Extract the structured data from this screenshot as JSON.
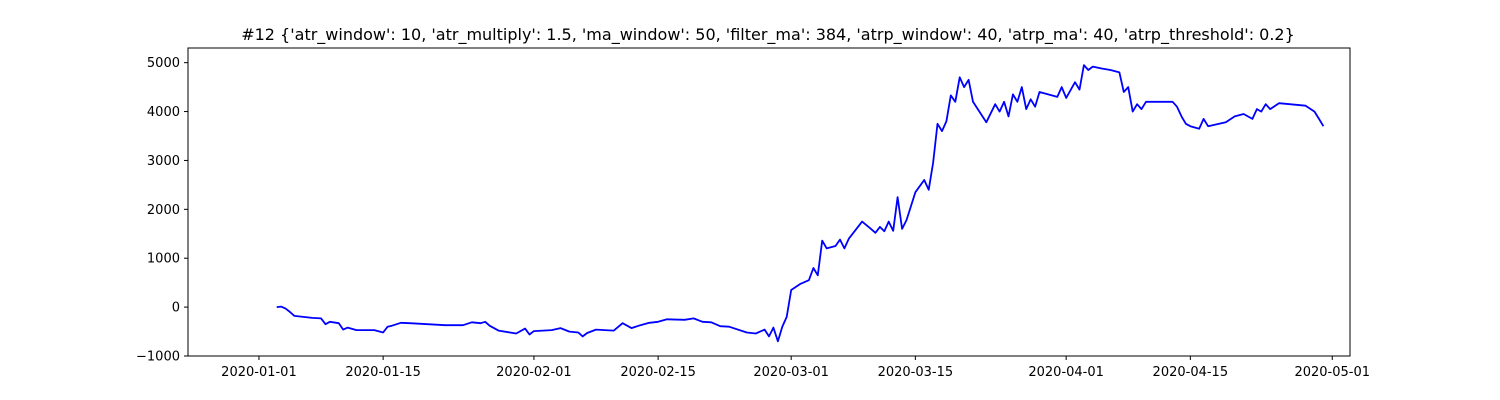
{
  "chart_data": {
    "type": "line",
    "title": "#12 {'atr_window': 10, 'atr_multiply': 1.5, 'ma_window': 50, 'filter_ma': 384, 'atrp_window': 40, 'atrp_ma': 40, 'atrp_threshold': 0.2}",
    "xlabel": "",
    "ylabel": "",
    "xlim": [
      "2019-12-24",
      "2020-05-03"
    ],
    "ylim": [
      -1000,
      5300
    ],
    "grid": false,
    "x_ticks": [
      {
        "value": "2020-01-01",
        "label": "2020-01-01"
      },
      {
        "value": "2020-01-15",
        "label": "2020-01-15"
      },
      {
        "value": "2020-02-01",
        "label": "2020-02-01"
      },
      {
        "value": "2020-02-15",
        "label": "2020-02-15"
      },
      {
        "value": "2020-03-01",
        "label": "2020-03-01"
      },
      {
        "value": "2020-03-15",
        "label": "2020-03-15"
      },
      {
        "value": "2020-04-01",
        "label": "2020-04-01"
      },
      {
        "value": "2020-04-15",
        "label": "2020-04-15"
      },
      {
        "value": "2020-05-01",
        "label": "2020-05-01"
      }
    ],
    "y_ticks": [
      {
        "value": -1000,
        "label": "−1000"
      },
      {
        "value": 0,
        "label": "0"
      },
      {
        "value": 1000,
        "label": "1000"
      },
      {
        "value": 2000,
        "label": "2000"
      },
      {
        "value": 3000,
        "label": "3000"
      },
      {
        "value": 4000,
        "label": "4000"
      },
      {
        "value": 5000,
        "label": "5000"
      }
    ],
    "series": [
      {
        "color": "#0000ff",
        "points": [
          [
            "2020-01-03",
            0
          ],
          [
            "2020-01-03 12:00",
            10
          ],
          [
            "2020-01-04",
            -30
          ],
          [
            "2020-01-04 12:00",
            -100
          ],
          [
            "2020-01-05",
            -180
          ],
          [
            "2020-01-07",
            -220
          ],
          [
            "2020-01-08",
            -230
          ],
          [
            "2020-01-08 12:00",
            -350
          ],
          [
            "2020-01-09",
            -300
          ],
          [
            "2020-01-10",
            -330
          ],
          [
            "2020-01-10 12:00",
            -460
          ],
          [
            "2020-01-11",
            -420
          ],
          [
            "2020-01-12",
            -470
          ],
          [
            "2020-01-14",
            -470
          ],
          [
            "2020-01-15",
            -520
          ],
          [
            "2020-01-15 12:00",
            -400
          ],
          [
            "2020-01-16",
            -380
          ],
          [
            "2020-01-17",
            -320
          ],
          [
            "2020-01-18",
            -330
          ],
          [
            "2020-01-20",
            -350
          ],
          [
            "2020-01-22",
            -370
          ],
          [
            "2020-01-24",
            -370
          ],
          [
            "2020-01-25",
            -310
          ],
          [
            "2020-01-26",
            -330
          ],
          [
            "2020-01-26 12:00",
            -300
          ],
          [
            "2020-01-27",
            -380
          ],
          [
            "2020-01-28",
            -480
          ],
          [
            "2020-01-30",
            -540
          ],
          [
            "2020-01-31",
            -440
          ],
          [
            "2020-01-31 12:00",
            -560
          ],
          [
            "2020-02-01",
            -490
          ],
          [
            "2020-02-03",
            -470
          ],
          [
            "2020-02-04",
            -430
          ],
          [
            "2020-02-05",
            -500
          ],
          [
            "2020-02-06",
            -520
          ],
          [
            "2020-02-06 12:00",
            -600
          ],
          [
            "2020-02-07",
            -530
          ],
          [
            "2020-02-08",
            -460
          ],
          [
            "2020-02-10",
            -480
          ],
          [
            "2020-02-11",
            -330
          ],
          [
            "2020-02-12",
            -430
          ],
          [
            "2020-02-13",
            -370
          ],
          [
            "2020-02-14",
            -320
          ],
          [
            "2020-02-15",
            -300
          ],
          [
            "2020-02-16",
            -250
          ],
          [
            "2020-02-18",
            -260
          ],
          [
            "2020-02-19",
            -230
          ],
          [
            "2020-02-20",
            -300
          ],
          [
            "2020-02-21",
            -310
          ],
          [
            "2020-02-22",
            -390
          ],
          [
            "2020-02-23",
            -400
          ],
          [
            "2020-02-25",
            -520
          ],
          [
            "2020-02-26",
            -540
          ],
          [
            "2020-02-27",
            -460
          ],
          [
            "2020-02-27 12:00",
            -600
          ],
          [
            "2020-02-28",
            -420
          ],
          [
            "2020-02-28 12:00",
            -700
          ],
          [
            "2020-02-29",
            -400
          ],
          [
            "2020-02-29 12:00",
            -200
          ],
          [
            "2020-03-01",
            350
          ],
          [
            "2020-03-02",
            470
          ],
          [
            "2020-03-03",
            550
          ],
          [
            "2020-03-03 12:00",
            800
          ],
          [
            "2020-03-04",
            650
          ],
          [
            "2020-03-04 12:00",
            1360
          ],
          [
            "2020-03-05",
            1200
          ],
          [
            "2020-03-06",
            1250
          ],
          [
            "2020-03-06 12:00",
            1380
          ],
          [
            "2020-03-07",
            1200
          ],
          [
            "2020-03-07 12:00",
            1400
          ],
          [
            "2020-03-09",
            1750
          ],
          [
            "2020-03-10",
            1600
          ],
          [
            "2020-03-10 12:00",
            1520
          ],
          [
            "2020-03-11",
            1640
          ],
          [
            "2020-03-11 12:00",
            1550
          ],
          [
            "2020-03-12",
            1750
          ],
          [
            "2020-03-12 12:00",
            1560
          ],
          [
            "2020-03-13",
            2250
          ],
          [
            "2020-03-13 12:00",
            1600
          ],
          [
            "2020-03-14",
            1780
          ],
          [
            "2020-03-15",
            2350
          ],
          [
            "2020-03-16",
            2600
          ],
          [
            "2020-03-16 12:00",
            2400
          ],
          [
            "2020-03-17",
            2950
          ],
          [
            "2020-03-17 12:00",
            3750
          ],
          [
            "2020-03-18",
            3600
          ],
          [
            "2020-03-18 12:00",
            3800
          ],
          [
            "2020-03-19",
            4330
          ],
          [
            "2020-03-19 12:00",
            4200
          ],
          [
            "2020-03-20",
            4700
          ],
          [
            "2020-03-20 12:00",
            4500
          ],
          [
            "2020-03-21",
            4650
          ],
          [
            "2020-03-21 12:00",
            4200
          ],
          [
            "2020-03-23",
            3780
          ],
          [
            "2020-03-24",
            4150
          ],
          [
            "2020-03-24 12:00",
            4000
          ],
          [
            "2020-03-25",
            4200
          ],
          [
            "2020-03-25 12:00",
            3900
          ],
          [
            "2020-03-26",
            4350
          ],
          [
            "2020-03-26 12:00",
            4200
          ],
          [
            "2020-03-27",
            4500
          ],
          [
            "2020-03-27 12:00",
            4050
          ],
          [
            "2020-03-28",
            4250
          ],
          [
            "2020-03-28 12:00",
            4100
          ],
          [
            "2020-03-29",
            4400
          ],
          [
            "2020-03-31",
            4300
          ],
          [
            "2020-03-31 12:00",
            4500
          ],
          [
            "2020-04-01",
            4280
          ],
          [
            "2020-04-02",
            4600
          ],
          [
            "2020-04-02 12:00",
            4450
          ],
          [
            "2020-04-03",
            4950
          ],
          [
            "2020-04-03 12:00",
            4850
          ],
          [
            "2020-04-04",
            4920
          ],
          [
            "2020-04-05",
            4880
          ],
          [
            "2020-04-06",
            4850
          ],
          [
            "2020-04-07",
            4800
          ],
          [
            "2020-04-07 12:00",
            4400
          ],
          [
            "2020-04-08",
            4500
          ],
          [
            "2020-04-08 12:00",
            4000
          ],
          [
            "2020-04-09",
            4150
          ],
          [
            "2020-04-09 12:00",
            4050
          ],
          [
            "2020-04-10",
            4200
          ],
          [
            "2020-04-13",
            4200
          ],
          [
            "2020-04-13 12:00",
            4100
          ],
          [
            "2020-04-14",
            3900
          ],
          [
            "2020-04-14 12:00",
            3750
          ],
          [
            "2020-04-15",
            3700
          ],
          [
            "2020-04-16",
            3650
          ],
          [
            "2020-04-16 12:00",
            3850
          ],
          [
            "2020-04-17",
            3700
          ],
          [
            "2020-04-19",
            3780
          ],
          [
            "2020-04-20",
            3900
          ],
          [
            "2020-04-21",
            3950
          ],
          [
            "2020-04-22",
            3850
          ],
          [
            "2020-04-22 12:00",
            4050
          ],
          [
            "2020-04-23",
            4000
          ],
          [
            "2020-04-23 12:00",
            4150
          ],
          [
            "2020-04-24",
            4050
          ],
          [
            "2020-04-25",
            4170
          ],
          [
            "2020-04-28",
            4120
          ],
          [
            "2020-04-29",
            4000
          ],
          [
            "2020-04-29 12:00",
            3850
          ],
          [
            "2020-04-30",
            3700
          ]
        ]
      }
    ]
  }
}
